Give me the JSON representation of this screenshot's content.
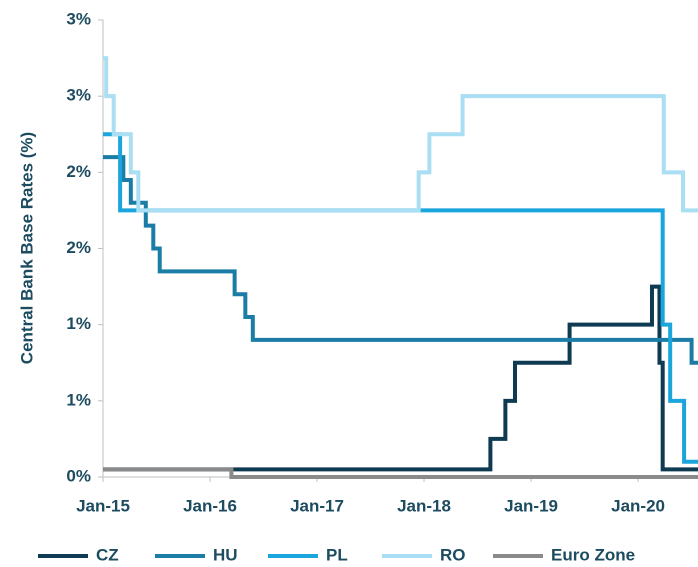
{
  "chart_data": {
    "type": "step",
    "y_label": "Central Bank Base Rates (%)",
    "xlim": [
      2015,
      2020.56
    ],
    "xticks": [
      {
        "value": 2015,
        "label": "Jan-15"
      },
      {
        "value": 2016,
        "label": "Jan-16"
      },
      {
        "value": 2017,
        "label": "Jan-17"
      },
      {
        "value": 2018,
        "label": "Jan-18"
      },
      {
        "value": 2019,
        "label": "Jan-19"
      },
      {
        "value": 2020,
        "label": "Jan-20"
      }
    ],
    "ylim": [
      0,
      3
    ],
    "yticks": [
      {
        "value": 0,
        "label": "0%"
      },
      {
        "value": 0.5,
        "label": "1%"
      },
      {
        "value": 1,
        "label": "1%"
      },
      {
        "value": 1.5,
        "label": "2%"
      },
      {
        "value": 2,
        "label": "2%"
      },
      {
        "value": 2.5,
        "label": "3%"
      },
      {
        "value": 3,
        "label": "3%"
      }
    ],
    "series": [
      {
        "name": "CZ",
        "color": "#0e3a52",
        "x": [
          2015,
          2018.62,
          2018.76,
          2018.85,
          2019.36,
          2020.13,
          2020.2,
          2020.23
        ],
        "values": [
          0.05,
          0.25,
          0.5,
          0.75,
          1.0,
          1.25,
          0.75,
          0.05
        ]
      },
      {
        "name": "HU",
        "color": "#1b7ca6",
        "x": [
          2015,
          2015.19,
          2015.26,
          2015.4,
          2015.47,
          2015.53,
          2016.23,
          2016.33,
          2016.4,
          2020.5
        ],
        "values": [
          2.1,
          1.95,
          1.8,
          1.65,
          1.5,
          1.35,
          1.2,
          1.05,
          0.9,
          0.75
        ]
      },
      {
        "name": "PL",
        "color": "#1aa5dc",
        "x": [
          2015,
          2015.16,
          2020.23,
          2020.3,
          2020.43
        ],
        "values": [
          2.25,
          1.75,
          1.0,
          0.5,
          0.1
        ]
      },
      {
        "name": "RO",
        "color": "#a9def3",
        "x": [
          2015,
          2015.03,
          2015.1,
          2015.26,
          2015.33,
          2017.95,
          2018.05,
          2018.36,
          2020.24,
          2020.42
        ],
        "values": [
          2.75,
          2.5,
          2.25,
          2.0,
          1.75,
          2.0,
          2.25,
          2.5,
          2.0,
          1.75
        ]
      },
      {
        "name": "Euro Zone",
        "color": "#8a8a8a",
        "x": [
          2015,
          2016.2
        ],
        "values": [
          0.05,
          0.0
        ]
      }
    ]
  }
}
